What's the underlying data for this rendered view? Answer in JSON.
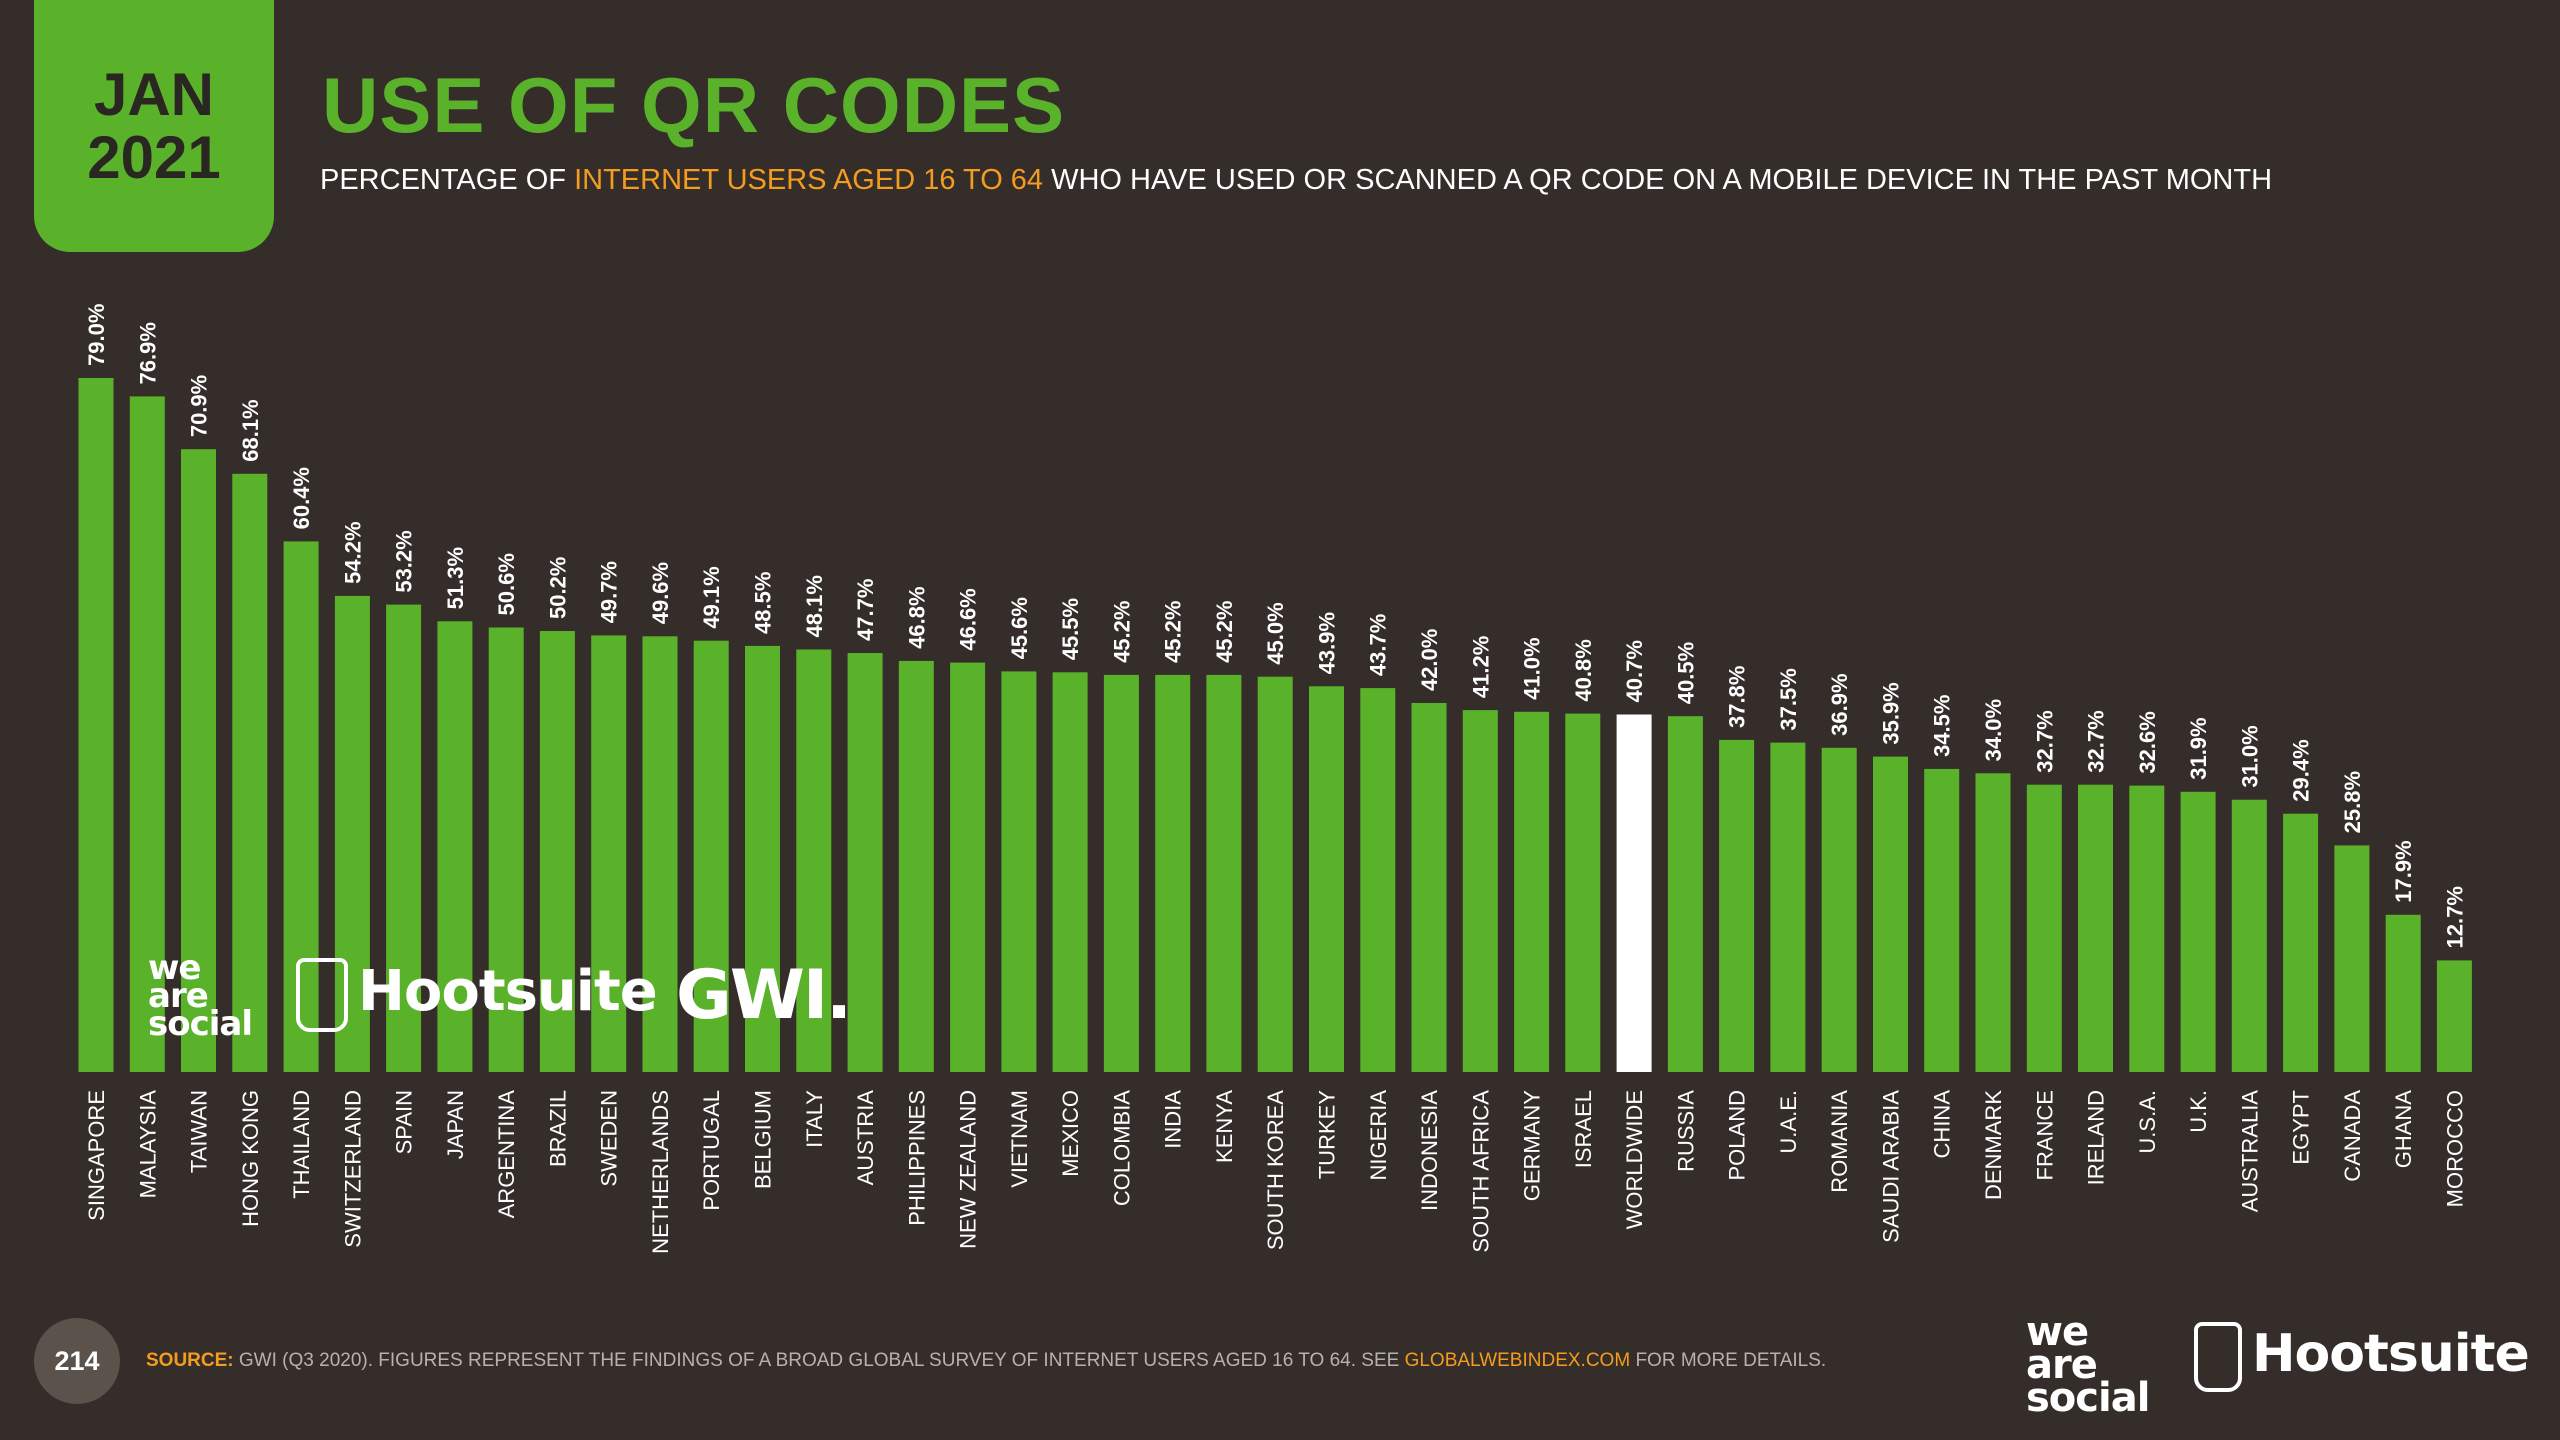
{
  "header": {
    "date_month": "JAN",
    "date_year": "2021",
    "title": "USE OF QR CODES",
    "subtitle_pre": "PERCENTAGE OF ",
    "subtitle_highlight": "INTERNET USERS AGED 16 TO 64",
    "subtitle_post": " WHO HAVE USED OR SCANNED A QR CODE ON A MOBILE DEVICE IN THE PAST MONTH"
  },
  "colors": {
    "background": "#342d29",
    "accent_green": "#5ab22a",
    "accent_orange": "#f39c1f",
    "highlight_bar": "#ffffff"
  },
  "logos": {
    "we_are_social": [
      "we",
      "are",
      "social"
    ],
    "hootsuite": "Hootsuite",
    "gwi": "GWI."
  },
  "footer": {
    "page_number": "214",
    "source_label": "SOURCE:",
    "source_text": " GWI (Q3 2020). FIGURES REPRESENT THE FINDINGS OF A BROAD GLOBAL SURVEY OF INTERNET USERS AGED 16 TO 64. SEE ",
    "source_url": "GLOBALWEBINDEX.COM",
    "source_end": " FOR MORE DETAILS."
  },
  "chart_data": {
    "type": "bar",
    "title": "USE OF QR CODES",
    "ylim": [
      0,
      80
    ],
    "value_suffix": "%",
    "highlight_category": "WORLDWIDE",
    "categories": [
      "SINGAPORE",
      "MALAYSIA",
      "TAIWAN",
      "HONG KONG",
      "THAILAND",
      "SWITZERLAND",
      "SPAIN",
      "JAPAN",
      "ARGENTINA",
      "BRAZIL",
      "SWEDEN",
      "NETHERLANDS",
      "PORTUGAL",
      "BELGIUM",
      "ITALY",
      "AUSTRIA",
      "PHILIPPINES",
      "NEW ZEALAND",
      "VIETNAM",
      "MEXICO",
      "COLOMBIA",
      "INDIA",
      "KENYA",
      "SOUTH KOREA",
      "TURKEY",
      "NIGERIA",
      "INDONESIA",
      "SOUTH AFRICA",
      "GERMANY",
      "ISRAEL",
      "WORLDWIDE",
      "RUSSIA",
      "POLAND",
      "U.A.E.",
      "ROMANIA",
      "SAUDI ARABIA",
      "CHINA",
      "DENMARK",
      "FRANCE",
      "IRELAND",
      "U.S.A.",
      "U.K.",
      "AUSTRALIA",
      "EGYPT",
      "CANADA",
      "GHANA",
      "MOROCCO"
    ],
    "values": [
      79.0,
      76.9,
      70.9,
      68.1,
      60.4,
      54.2,
      53.2,
      51.3,
      50.6,
      50.2,
      49.7,
      49.6,
      49.1,
      48.5,
      48.1,
      47.7,
      46.8,
      46.6,
      45.6,
      45.5,
      45.2,
      45.2,
      45.2,
      45.0,
      43.9,
      43.7,
      42.0,
      41.2,
      41.0,
      40.8,
      40.7,
      40.5,
      37.8,
      37.5,
      36.9,
      35.9,
      34.5,
      34.0,
      32.7,
      32.7,
      32.6,
      31.9,
      31.0,
      29.4,
      25.8,
      17.9,
      12.7
    ]
  }
}
